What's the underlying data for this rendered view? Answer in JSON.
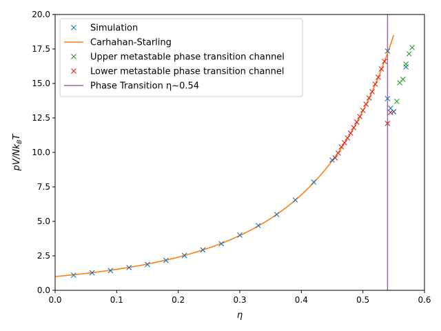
{
  "chart_data": {
    "type": "scatter",
    "title": "",
    "xlabel": "η",
    "ylabel": "pV/Nk_BT",
    "xlim": [
      0.0,
      0.6
    ],
    "ylim": [
      0.0,
      20.0
    ],
    "xticks": [
      0.0,
      0.1,
      0.2,
      0.3,
      0.4,
      0.5,
      0.6
    ],
    "xtick_labels": [
      "0.0",
      "0.1",
      "0.2",
      "0.3",
      "0.4",
      "0.5",
      "0.6"
    ],
    "yticks": [
      0.0,
      2.5,
      5.0,
      7.5,
      10.0,
      12.5,
      15.0,
      17.5,
      20.0
    ],
    "ytick_labels": [
      "0.0",
      "2.5",
      "5.0",
      "7.5",
      "10.0",
      "12.5",
      "15.0",
      "17.5",
      "20.0"
    ],
    "legend_position": "top-left",
    "series": [
      {
        "name": "Simulation",
        "kind": "marker",
        "color": "#1f77b4",
        "points": [
          [
            0.03,
            1.1
          ],
          [
            0.06,
            1.27
          ],
          [
            0.09,
            1.43
          ],
          [
            0.12,
            1.65
          ],
          [
            0.15,
            1.88
          ],
          [
            0.18,
            2.17
          ],
          [
            0.21,
            2.53
          ],
          [
            0.24,
            2.93
          ],
          [
            0.27,
            3.38
          ],
          [
            0.3,
            4.0
          ],
          [
            0.33,
            4.7
          ],
          [
            0.36,
            5.5
          ],
          [
            0.39,
            6.55
          ],
          [
            0.42,
            7.85
          ],
          [
            0.45,
            9.45
          ],
          [
            0.54,
            17.35
          ],
          [
            0.54,
            13.9
          ],
          [
            0.545,
            13.2
          ],
          [
            0.55,
            12.95
          ],
          [
            0.57,
            16.2
          ]
        ]
      },
      {
        "name": "Carhahan-Starling",
        "kind": "line",
        "color": "#ff7f0e",
        "x_range": [
          0.0,
          0.55
        ]
      },
      {
        "name": "Upper metastable phase transition channel",
        "kind": "marker",
        "color": "#2ca02c",
        "points": [
          [
            0.555,
            13.7
          ],
          [
            0.56,
            15.05
          ],
          [
            0.565,
            15.3
          ],
          [
            0.57,
            16.4
          ],
          [
            0.575,
            17.15
          ],
          [
            0.58,
            17.6
          ]
        ]
      },
      {
        "name": "Lower metastable phase transition channel",
        "kind": "marker",
        "color": "#d62728",
        "points": [
          [
            0.455,
            9.6
          ],
          [
            0.46,
            9.95
          ],
          [
            0.465,
            10.4
          ],
          [
            0.47,
            10.7
          ],
          [
            0.475,
            11.05
          ],
          [
            0.48,
            11.4
          ],
          [
            0.485,
            11.8
          ],
          [
            0.49,
            12.2
          ],
          [
            0.495,
            12.6
          ],
          [
            0.5,
            13.05
          ],
          [
            0.505,
            13.5
          ],
          [
            0.51,
            13.95
          ],
          [
            0.515,
            14.4
          ],
          [
            0.52,
            14.95
          ],
          [
            0.525,
            15.45
          ],
          [
            0.53,
            16.05
          ],
          [
            0.535,
            16.6
          ],
          [
            0.54,
            12.1
          ],
          [
            0.545,
            12.9
          ],
          [
            0.55,
            12.95
          ]
        ]
      },
      {
        "name": "Phase Transition η∼0.54",
        "kind": "vline",
        "color": "#9467bd",
        "x": 0.54
      }
    ]
  }
}
